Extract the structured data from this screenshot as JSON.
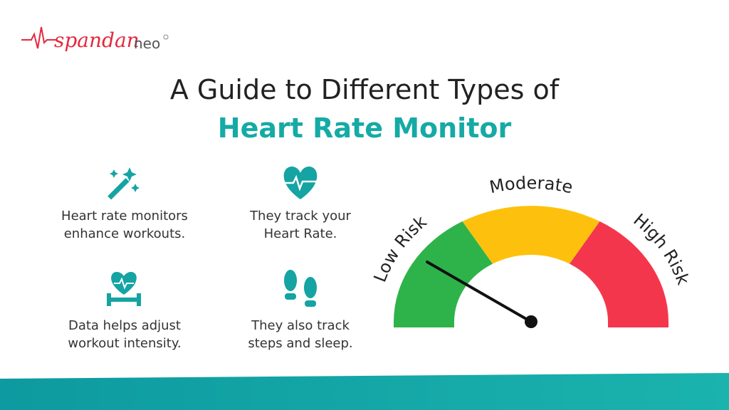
{
  "logo": {
    "brand": "spandan",
    "suffix": "neo"
  },
  "header": {
    "title_line1": "A Guide to Different Types of",
    "title_line2": "Heart Rate Monitor"
  },
  "features": [
    {
      "line1": "Heart rate monitors",
      "line2": "enhance workouts."
    },
    {
      "line1": "They track your",
      "line2": "Heart Rate."
    },
    {
      "line1": "Data helps adjust",
      "line2": "workout intensity."
    },
    {
      "line1": "They also track",
      "line2": "steps and sleep."
    }
  ],
  "gauge": {
    "labels": [
      "Low Risk",
      "Moderate",
      "High Risk"
    ]
  }
}
